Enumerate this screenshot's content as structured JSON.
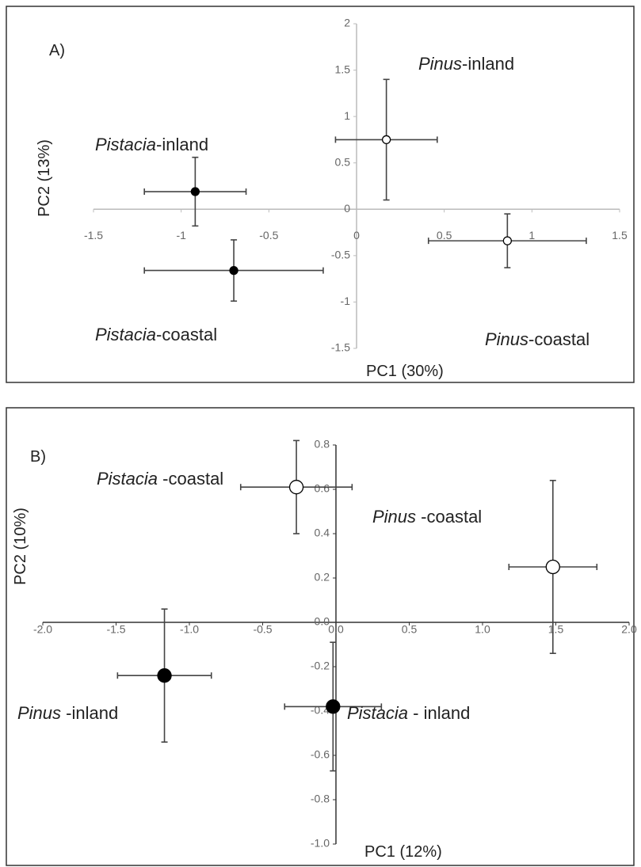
{
  "chart_data": [
    {
      "type": "scatter",
      "title": "A)",
      "x_label": "PC1 (30%)",
      "y_label": "PC2 (13%)",
      "xlim": [
        -1.5,
        1.5
      ],
      "xticks": [
        -1.5,
        -1,
        -0.5,
        0,
        0.5,
        1,
        1.5
      ],
      "ylim": [
        -1.5,
        2
      ],
      "yticks": [
        -1.5,
        -1,
        -0.5,
        0,
        0.5,
        1,
        1.5,
        2
      ],
      "series": [
        {
          "name": "Pinus-inland",
          "color": "#ffffff",
          "x": [
            0.17
          ],
          "values": [
            0.75
          ],
          "xerr": [
            0.29
          ],
          "yerr": [
            0.65
          ]
        },
        {
          "name": "Pistacia-inland",
          "color": "#000000",
          "x": [
            -0.92
          ],
          "values": [
            0.19
          ],
          "xerr": [
            0.29
          ],
          "yerr": [
            0.37
          ]
        },
        {
          "name": "Pistacia-coastal",
          "color": "#000000",
          "x": [
            -0.7
          ],
          "values": [
            -0.66
          ],
          "xerr": [
            0.51
          ],
          "yerr": [
            0.33
          ]
        },
        {
          "name": "Pinus-coastal",
          "color": "#ffffff",
          "x": [
            0.86
          ],
          "values": [
            -0.34
          ],
          "xerr": [
            0.45
          ],
          "yerr": [
            0.29
          ]
        }
      ]
    },
    {
      "type": "scatter",
      "title": "B)",
      "x_label": "PC1 (12%)",
      "y_label": "PC2 (10%)",
      "xlim": [
        -2,
        2
      ],
      "xticks": [
        {
          "value": -2,
          "label": "-2.0"
        },
        -1.5,
        {
          "value": -1,
          "label": "-1.0"
        },
        -0.5,
        {
          "value": 0,
          "label": "0.0"
        },
        0.5,
        {
          "value": 1,
          "label": "1.0"
        },
        1.5,
        {
          "value": 2,
          "label": "2.0"
        }
      ],
      "ylim": [
        -1,
        0.8
      ],
      "yticks": [
        {
          "value": -1,
          "label": "-1.0"
        },
        -0.8,
        -0.6,
        -0.4,
        -0.2,
        {
          "value": 0,
          "label": "0.0"
        },
        0.2,
        0.4,
        0.6,
        0.8
      ],
      "series": [
        {
          "name": "Pistacia -coastal",
          "color": "#ffffff",
          "x": [
            -0.27
          ],
          "values": [
            0.61
          ],
          "xerr": [
            0.38
          ],
          "yerr": [
            0.21
          ]
        },
        {
          "name": "Pinus -coastal",
          "color": "#ffffff",
          "x": [
            1.48
          ],
          "values": [
            0.25
          ],
          "xerr": [
            0.3
          ],
          "yerr": [
            0.39
          ]
        },
        {
          "name": "Pinus -inland",
          "color": "#000000",
          "x": [
            -1.17
          ],
          "values": [
            -0.24
          ],
          "xerr": [
            0.32
          ],
          "yerr": [
            0.3
          ]
        },
        {
          "name": "Pistacia - inland",
          "color": "#000000",
          "x": [
            -0.02
          ],
          "values": [
            -0.38
          ],
          "xerr": [
            0.33
          ],
          "yerr": [
            0.29
          ]
        }
      ]
    }
  ]
}
